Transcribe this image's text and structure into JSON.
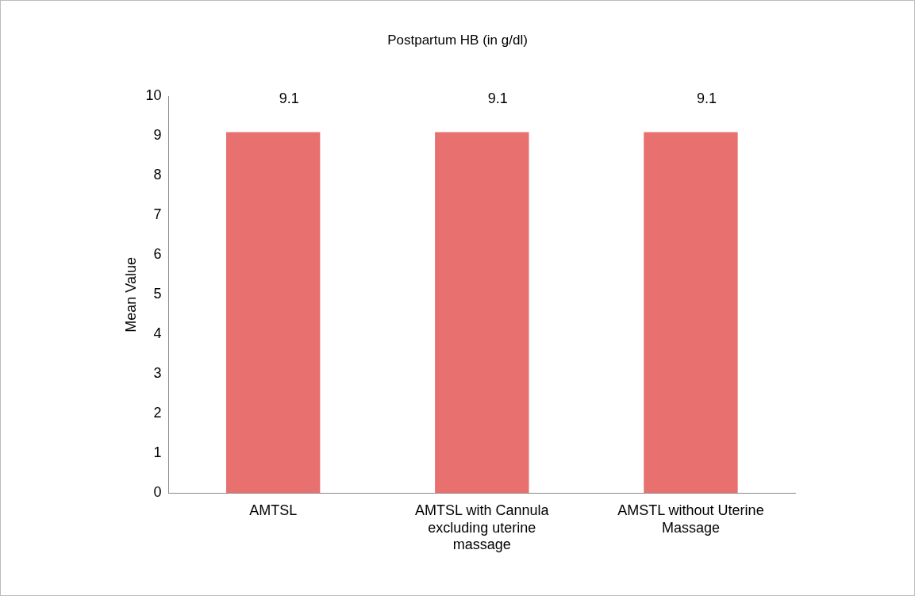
{
  "chart_data": {
    "type": "bar",
    "title": "Postpartum HB (in g/dl)",
    "ylabel": "Mean Value",
    "categories": [
      "AMTSL",
      "AMTSL with Cannula excluding uterine massage",
      "AMSTL without Uterine Massage"
    ],
    "values": [
      9.1,
      9.1,
      9.1
    ],
    "color": "#e8706e",
    "ylim": [
      0,
      10
    ],
    "yticks": [
      0,
      1,
      2,
      3,
      4,
      5,
      6,
      7,
      8,
      9,
      10
    ],
    "grid": false,
    "legend": false,
    "data_labels": true
  }
}
